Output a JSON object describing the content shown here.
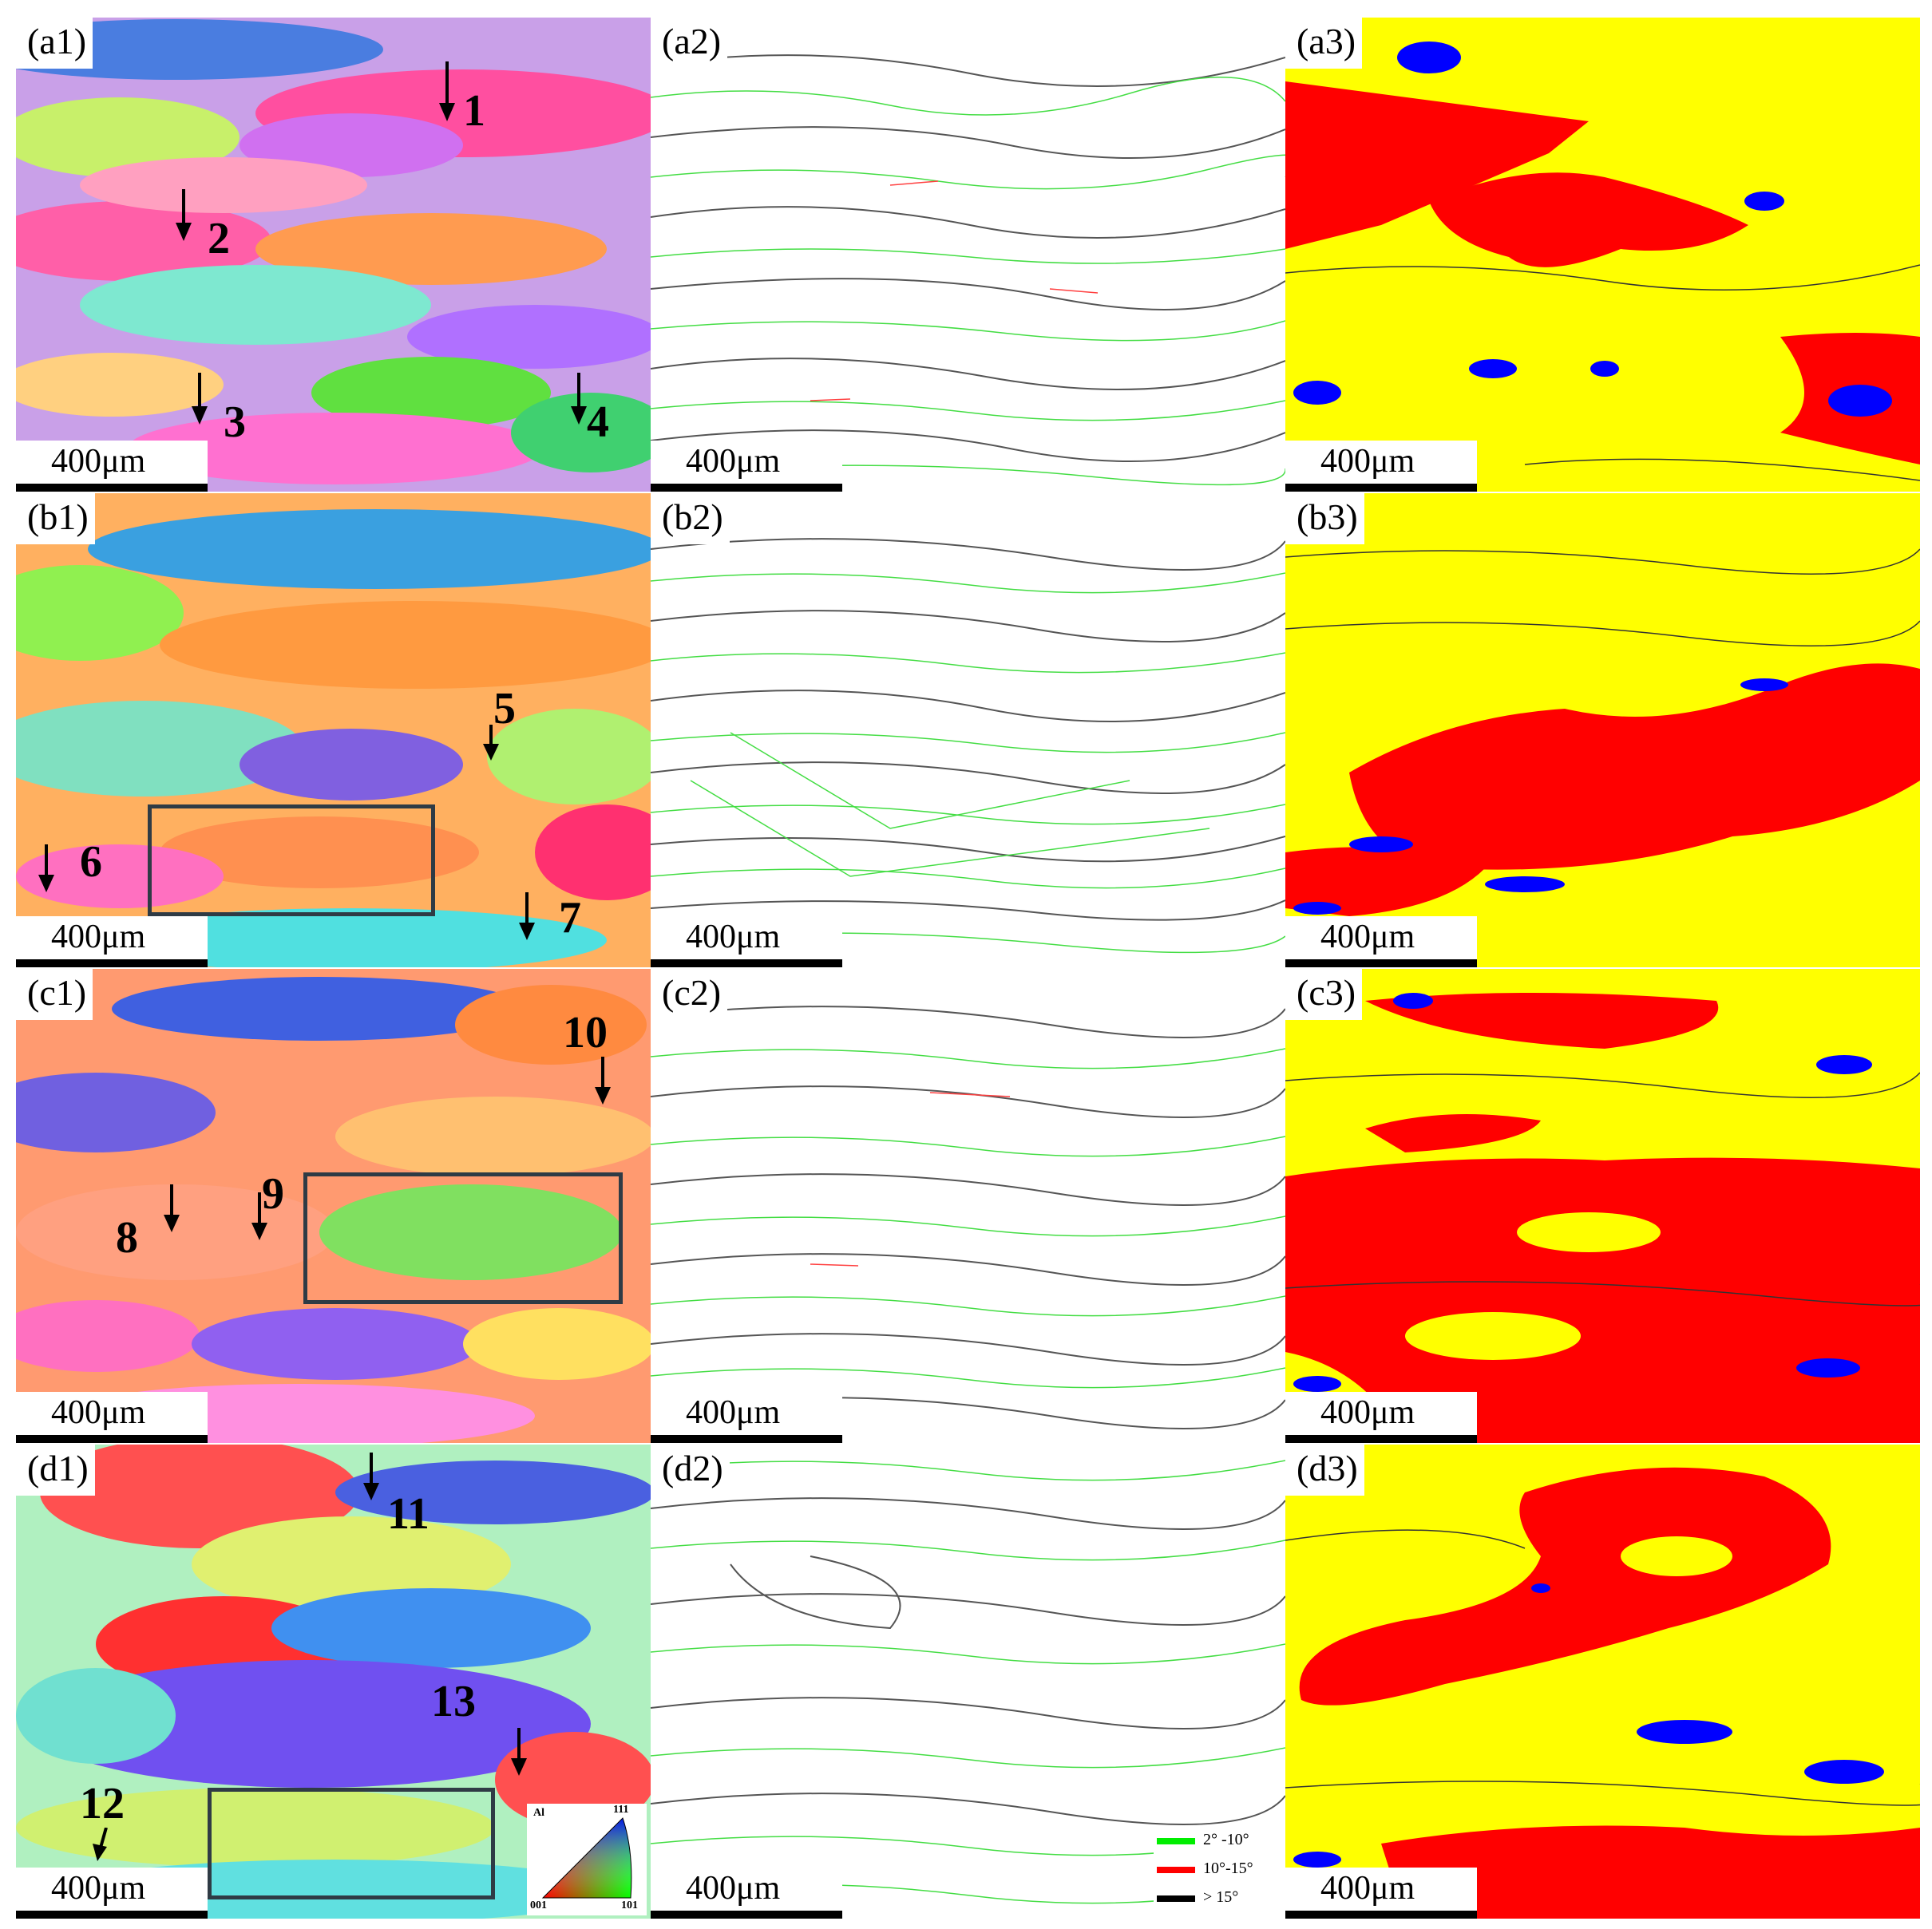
{
  "panels": {
    "a1": {
      "label": "(a1)"
    },
    "a2": {
      "label": "(a2)"
    },
    "a3": {
      "label": "(a3)"
    },
    "b1": {
      "label": "(b1)"
    },
    "b2": {
      "label": "(b2)"
    },
    "b3": {
      "label": "(b3)"
    },
    "c1": {
      "label": "(c1)"
    },
    "c2": {
      "label": "(c2)"
    },
    "c3": {
      "label": "(c3)"
    },
    "d1": {
      "label": "(d1)"
    },
    "d2": {
      "label": "(d2)"
    },
    "d3": {
      "label": "(d3)"
    }
  },
  "scale_bar": "400μm",
  "markers": [
    "1",
    "2",
    "3",
    "4",
    "5",
    "6",
    "7",
    "8",
    "9",
    "10",
    "11",
    "12",
    "13"
  ],
  "ipf_key": {
    "phase": "Al",
    "corner_top": "111",
    "corner_left": "001",
    "corner_right": "101"
  },
  "legend": [
    {
      "label": "2° -10°",
      "color": "#00ee00"
    },
    {
      "label": "10°-15°",
      "color": "#ff0000"
    },
    {
      "label": "> 15°",
      "color": "#000000"
    }
  ],
  "colors": {
    "recrystallized": "#0000ff",
    "substructured": "#ffff00",
    "deformed": "#ff0000"
  }
}
